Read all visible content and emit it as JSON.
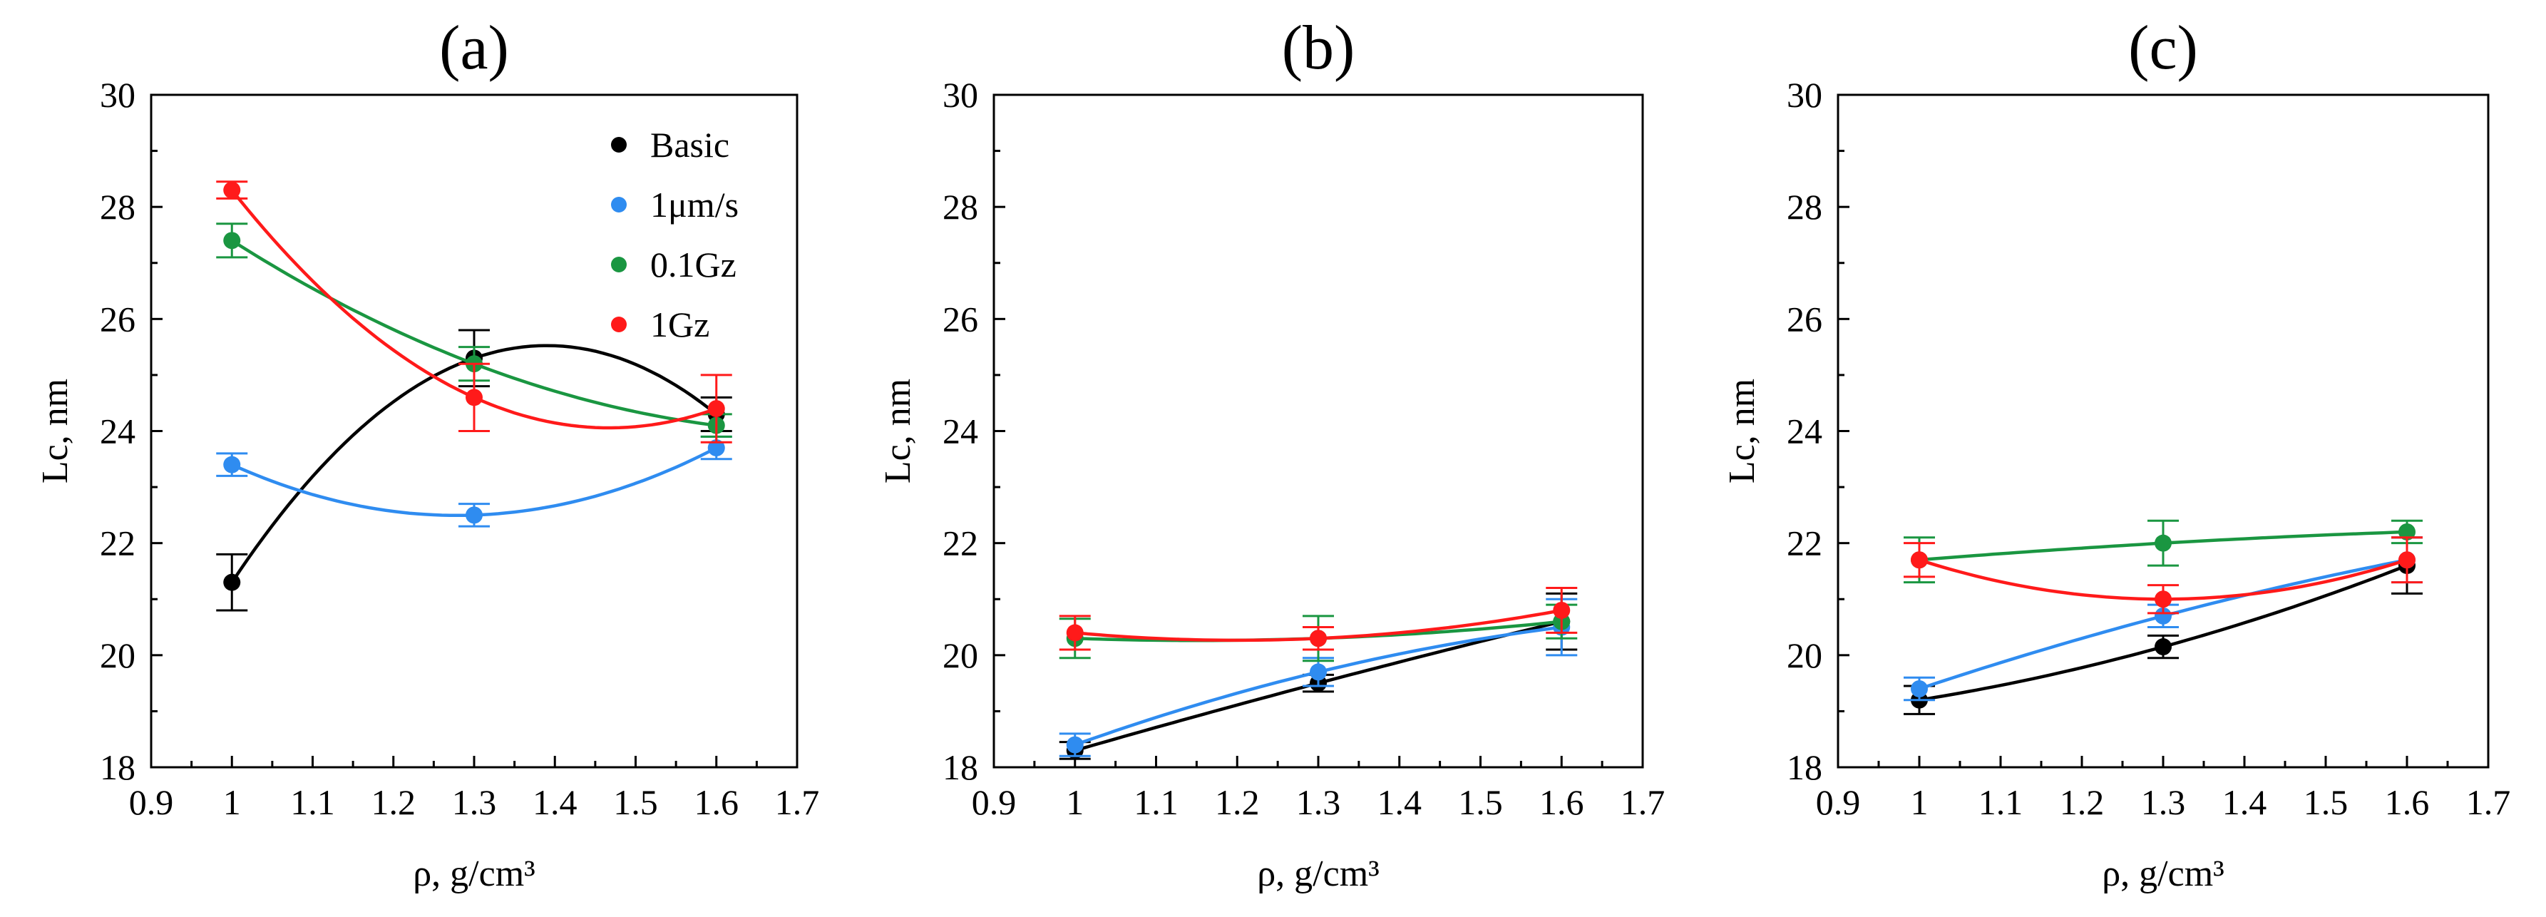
{
  "chart_data": [
    {
      "type": "scatter",
      "title": "(a)",
      "xlabel": "ρ, g/cm³",
      "ylabel": "Lc, nm",
      "xlim": [
        0.9,
        1.7
      ],
      "ylim": [
        18,
        30
      ],
      "xticks": [
        "0.9",
        "1",
        "1.1",
        "1.2",
        "1.3",
        "1.4",
        "1.5",
        "1.6",
        "1.7"
      ],
      "yticks": [
        "18",
        "20",
        "22",
        "24",
        "26",
        "28",
        "30"
      ],
      "legend": "top-right",
      "series": [
        {
          "name": "Basic",
          "color": "#000000",
          "x": [
            1,
            1.3,
            1.6
          ],
          "y": [
            21.3,
            25.3,
            24.3
          ],
          "err": [
            0.5,
            0.5,
            0.3
          ]
        },
        {
          "name": "1μm/s",
          "color": "#2f8cf0",
          "x": [
            1,
            1.3,
            1.6
          ],
          "y": [
            23.4,
            22.5,
            23.7
          ],
          "err": [
            0.2,
            0.2,
            0.2
          ]
        },
        {
          "name": "0.1Gz",
          "color": "#1a9641",
          "x": [
            1,
            1.3,
            1.6
          ],
          "y": [
            27.4,
            25.2,
            24.1
          ],
          "err": [
            0.3,
            0.3,
            0.2
          ]
        },
        {
          "name": "1Gz",
          "color": "#ff1a1a",
          "x": [
            1,
            1.3,
            1.6
          ],
          "y": [
            28.3,
            24.6,
            24.4
          ],
          "err": [
            0.15,
            0.6,
            0.6
          ]
        }
      ]
    },
    {
      "type": "scatter",
      "title": "(b)",
      "xlabel": "ρ, g/cm³",
      "ylabel": "Lc, nm",
      "xlim": [
        0.9,
        1.7
      ],
      "ylim": [
        18,
        30
      ],
      "xticks": [
        "0.9",
        "1",
        "1.1",
        "1.2",
        "1.3",
        "1.4",
        "1.5",
        "1.6",
        "1.7"
      ],
      "yticks": [
        "18",
        "20",
        "22",
        "24",
        "26",
        "28",
        "30"
      ],
      "series": [
        {
          "name": "Basic",
          "color": "#000000",
          "x": [
            1,
            1.3,
            1.6
          ],
          "y": [
            18.3,
            19.5,
            20.6
          ],
          "err": [
            0.15,
            0.15,
            0.5
          ]
        },
        {
          "name": "1μm/s",
          "color": "#2f8cf0",
          "x": [
            1,
            1.3,
            1.6
          ],
          "y": [
            18.4,
            19.7,
            20.5
          ],
          "err": [
            0.2,
            0.25,
            0.5
          ]
        },
        {
          "name": "0.1Gz",
          "color": "#1a9641",
          "x": [
            1,
            1.3,
            1.6
          ],
          "y": [
            20.3,
            20.3,
            20.6
          ],
          "err": [
            0.35,
            0.4,
            0.3
          ]
        },
        {
          "name": "1Gz",
          "color": "#ff1a1a",
          "x": [
            1,
            1.3,
            1.6
          ],
          "y": [
            20.4,
            20.3,
            20.8
          ],
          "err": [
            0.3,
            0.2,
            0.4
          ]
        }
      ]
    },
    {
      "type": "scatter",
      "title": "(c)",
      "xlabel": "ρ, g/cm³",
      "ylabel": "Lc, nm",
      "xlim": [
        0.9,
        1.7
      ],
      "ylim": [
        18,
        30
      ],
      "xticks": [
        "0.9",
        "1",
        "1.1",
        "1.2",
        "1.3",
        "1.4",
        "1.5",
        "1.6",
        "1.7"
      ],
      "yticks": [
        "18",
        "20",
        "22",
        "24",
        "26",
        "28",
        "30"
      ],
      "series": [
        {
          "name": "Basic",
          "color": "#000000",
          "x": [
            1,
            1.3,
            1.6
          ],
          "y": [
            19.2,
            20.15,
            21.6
          ],
          "err": [
            0.25,
            0.2,
            0.5
          ]
        },
        {
          "name": "1μm/s",
          "color": "#2f8cf0",
          "x": [
            1,
            1.3,
            1.6
          ],
          "y": [
            19.4,
            20.7,
            21.7
          ],
          "err": [
            0.2,
            0.2,
            0.4
          ]
        },
        {
          "name": "0.1Gz",
          "color": "#1a9641",
          "x": [
            1,
            1.3,
            1.6
          ],
          "y": [
            21.7,
            22.0,
            22.2
          ],
          "err": [
            0.4,
            0.4,
            0.2
          ]
        },
        {
          "name": "1Gz",
          "color": "#ff1a1a",
          "x": [
            1,
            1.3,
            1.6
          ],
          "y": [
            21.7,
            21.0,
            21.7
          ],
          "err": [
            0.3,
            0.25,
            0.4
          ]
        }
      ]
    }
  ]
}
